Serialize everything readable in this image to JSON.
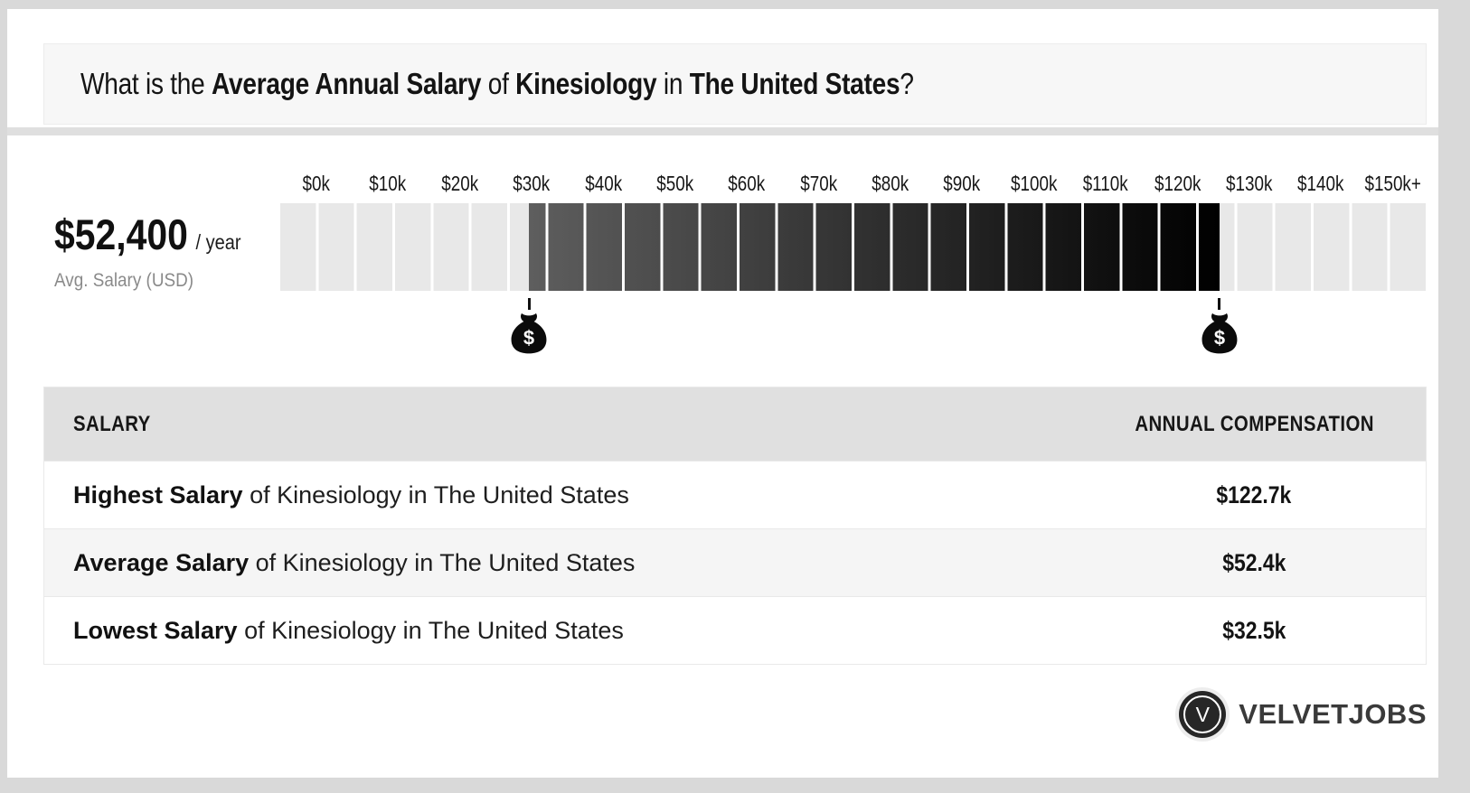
{
  "title": {
    "segments": [
      {
        "text": "What is the ",
        "bold": false
      },
      {
        "text": "Average Annual Salary",
        "bold": true
      },
      {
        "text": " of ",
        "bold": false
      },
      {
        "text": "Kinesiology",
        "bold": true
      },
      {
        "text": " in ",
        "bold": false
      },
      {
        "text": "The United States",
        "bold": true
      },
      {
        "text": "?",
        "bold": false
      }
    ]
  },
  "summary": {
    "amount": "$52,400",
    "per": "/ year",
    "caption": "Avg. Salary (USD)"
  },
  "chart_data": {
    "type": "bar",
    "title": "Average Annual Salary of Kinesiology in The United States",
    "unit_label": "Avg. Salary (USD)",
    "average_salary_usd": 52400,
    "lowest_salary_k": 32.5,
    "highest_salary_k": 122.7,
    "average_salary_k": 52.4,
    "axis": {
      "min_k": 0,
      "max_k": 150,
      "tick_labels": [
        "$0k",
        "$10k",
        "$20k",
        "$30k",
        "$40k",
        "$50k",
        "$60k",
        "$70k",
        "$80k",
        "$90k",
        "$100k",
        "$110k",
        "$120k",
        "$130k",
        "$140k",
        "$150k+"
      ]
    },
    "segments": 30,
    "segment_value_k": 5,
    "marker_symbol": "$",
    "colors": {
      "inactive": "#e8e8e8",
      "active_start": "#5e5e5e",
      "active_end": "#000000",
      "gap": "#ffffff"
    },
    "markers": [
      {
        "name": "lowest",
        "value_k": 32.5
      },
      {
        "name": "highest",
        "value_k": 122.7
      }
    ]
  },
  "table": {
    "headers": [
      "SALARY",
      "ANNUAL COMPENSATION"
    ],
    "rows": [
      {
        "label": [
          {
            "text": "Highest Salary",
            "bold": true
          },
          {
            "text": " of Kinesiology in The United States",
            "bold": false
          }
        ],
        "value": "$122.7k"
      },
      {
        "label": [
          {
            "text": "Average Salary",
            "bold": true
          },
          {
            "text": " of Kinesiology in The United States",
            "bold": false
          }
        ],
        "value": "$52.4k"
      },
      {
        "label": [
          {
            "text": "Lowest Salary",
            "bold": true
          },
          {
            "text": " of Kinesiology in The United States",
            "bold": false
          }
        ],
        "value": "$32.5k"
      }
    ]
  },
  "branding": {
    "logo_letter": "V",
    "logo_text": "VELVETJOBS"
  }
}
